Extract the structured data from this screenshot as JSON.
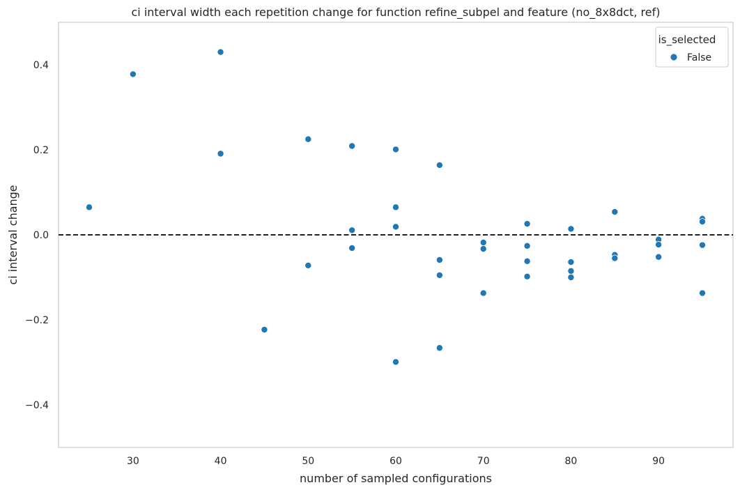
{
  "chart_data": {
    "type": "scatter",
    "title": "ci interval width each repetition change for function refine_subpel and feature (no_8x8dct, ref)",
    "xlabel": "number of sampled configurations",
    "ylabel": "ci interval change",
    "xlim": [
      21.5,
      98.5
    ],
    "ylim": [
      -0.5,
      0.5
    ],
    "xticks": [
      30,
      40,
      50,
      60,
      70,
      80,
      90
    ],
    "yticks": [
      0.4,
      0.2,
      0.0,
      -0.2,
      -0.4
    ],
    "ytick_labels": [
      "0.4",
      "0.2",
      "0.0",
      "−0.2",
      "−0.4"
    ],
    "grid": false,
    "reference_line": {
      "y": 0,
      "style": "dashed",
      "color": "#000000"
    },
    "legend": {
      "title": "is_selected",
      "placement": "top-right"
    },
    "series": [
      {
        "name": "False",
        "color": "#1f77b4",
        "points": [
          {
            "x": 25,
            "y": 0.065
          },
          {
            "x": 30,
            "y": 0.378
          },
          {
            "x": 40,
            "y": 0.43
          },
          {
            "x": 40,
            "y": 0.191
          },
          {
            "x": 45,
            "y": -0.223
          },
          {
            "x": 50,
            "y": 0.225
          },
          {
            "x": 50,
            "y": -0.072
          },
          {
            "x": 55,
            "y": 0.209
          },
          {
            "x": 55,
            "y": 0.011
          },
          {
            "x": 55,
            "y": -0.031
          },
          {
            "x": 60,
            "y": 0.201
          },
          {
            "x": 60,
            "y": 0.065
          },
          {
            "x": 60,
            "y": 0.019
          },
          {
            "x": 60,
            "y": -0.299
          },
          {
            "x": 65,
            "y": 0.164
          },
          {
            "x": 65,
            "y": -0.059
          },
          {
            "x": 65,
            "y": -0.095
          },
          {
            "x": 65,
            "y": -0.266
          },
          {
            "x": 70,
            "y": -0.018
          },
          {
            "x": 70,
            "y": -0.033
          },
          {
            "x": 70,
            "y": -0.137
          },
          {
            "x": 75,
            "y": 0.026
          },
          {
            "x": 75,
            "y": -0.026
          },
          {
            "x": 75,
            "y": -0.062
          },
          {
            "x": 75,
            "y": -0.098
          },
          {
            "x": 80,
            "y": 0.014
          },
          {
            "x": 80,
            "y": -0.064
          },
          {
            "x": 80,
            "y": -0.085
          },
          {
            "x": 80,
            "y": -0.1
          },
          {
            "x": 85,
            "y": 0.054
          },
          {
            "x": 85,
            "y": -0.047
          },
          {
            "x": 85,
            "y": -0.055
          },
          {
            "x": 90,
            "y": -0.011
          },
          {
            "x": 90,
            "y": -0.023
          },
          {
            "x": 90,
            "y": -0.052
          },
          {
            "x": 95,
            "y": 0.038
          },
          {
            "x": 95,
            "y": 0.031
          },
          {
            "x": 95,
            "y": -0.024
          },
          {
            "x": 95,
            "y": -0.137
          }
        ]
      }
    ]
  }
}
